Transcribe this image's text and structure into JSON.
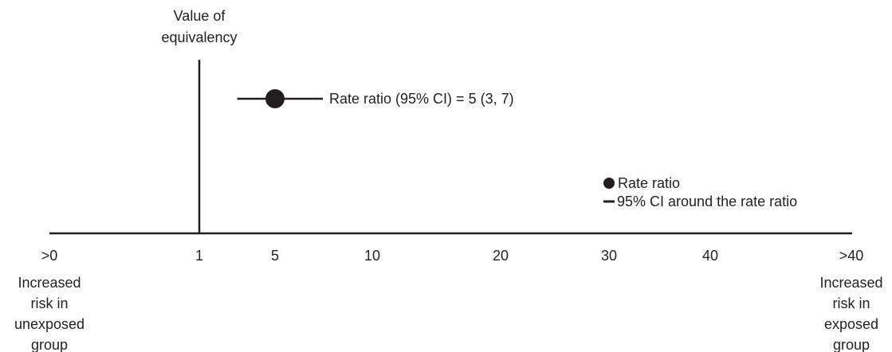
{
  "equivalency_label": [
    "Value of",
    "equivalency"
  ],
  "estimate": {
    "rate_ratio": 5,
    "ci_lower": 3,
    "ci_upper": 7,
    "annotation": "Rate ratio (95% CI) = 5 (3, 7)"
  },
  "legend": {
    "point_label": "Rate ratio",
    "line_label": "95% CI around the rate ratio"
  },
  "axis": {
    "equivalency_value": 1,
    "ticks": [
      {
        "label": ">0",
        "value": -3.53
      },
      {
        "label": "1",
        "value": 1
      },
      {
        "label": "5",
        "value": 5
      },
      {
        "label": "10",
        "value": 10
      },
      {
        "label": "20",
        "value": 20
      },
      {
        "label": "30",
        "value": 30
      },
      {
        "label": "40",
        "value": 40
      },
      {
        "label": ">40",
        "value": 45.2
      }
    ]
  },
  "left_end_label": [
    "Increased",
    "risk in",
    "unexposed",
    "group"
  ],
  "right_end_label": [
    "Increased",
    "risk in",
    "exposed",
    "group"
  ],
  "colors": {
    "ink": "#231f20",
    "background": "#ffffff"
  }
}
